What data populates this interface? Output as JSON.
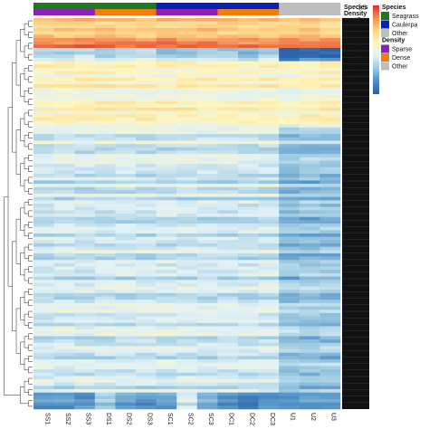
{
  "chart_data": {
    "type": "heatmap",
    "columns": [
      "SS1",
      "SS2",
      "SS3",
      "DS1",
      "DS2",
      "DS3",
      "SC1",
      "SC2",
      "SC3",
      "DC1",
      "DC2",
      "DC3",
      "U1",
      "U2",
      "U3"
    ],
    "annotation_rows": [
      "Species",
      "Density"
    ],
    "annotations": {
      "Species": [
        "Seagrass",
        "Seagrass",
        "Seagrass",
        "Seagrass",
        "Seagrass",
        "Seagrass",
        "Caulerpa",
        "Caulerpa",
        "Caulerpa",
        "Caulerpa",
        "Caulerpa",
        "Caulerpa",
        "Other",
        "Other",
        "Other"
      ],
      "Density": [
        "Sparse",
        "Sparse",
        "Sparse",
        "Dense",
        "Dense",
        "Dense",
        "Sparse",
        "Sparse",
        "Sparse",
        "Dense",
        "Dense",
        "Dense",
        "Other",
        "Other",
        "Other"
      ]
    },
    "legends": [
      {
        "title": "Species",
        "items": [
          {
            "label": "Seagrass",
            "color": "#1f7a1f"
          },
          {
            "label": "Caulerpa",
            "color": "#0b1fb4"
          },
          {
            "label": "Other",
            "color": "#bebebe"
          }
        ]
      },
      {
        "title": "Density",
        "items": [
          {
            "label": "Sparse",
            "color": "#8b22b3"
          },
          {
            "label": "Dense",
            "color": "#f07f0a"
          },
          {
            "label": "Other",
            "color": "#bebebe"
          }
        ]
      }
    ],
    "color_scale": {
      "ticks": [
        "3.5",
        "3",
        "2.5",
        "2",
        "1.5",
        "1",
        "0.5",
        "0"
      ],
      "min": 0,
      "max": 3.5,
      "colors": [
        "#2b5fa8",
        "#4e8ec4",
        "#9ac8e0",
        "#e0f1f6",
        "#fdf6bf",
        "#fdd588",
        "#f68f55",
        "#d73027"
      ]
    },
    "row_bands": [
      {
        "rows": 6,
        "base": 2.6,
        "col_effect": [
          0,
          0,
          0,
          0,
          0,
          0,
          0,
          0,
          0,
          0,
          0,
          0,
          0,
          0,
          0
        ]
      },
      {
        "rows": 3,
        "base": 3.1,
        "col_effect": [
          0,
          0,
          0,
          0,
          0,
          0,
          0,
          0,
          0,
          0,
          0,
          0,
          0,
          0,
          0
        ]
      },
      {
        "rows": 4,
        "base": 1.25,
        "col_effect": [
          0.2,
          0.1,
          0.2,
          0,
          0.1,
          0.2,
          -0.1,
          0,
          0.1,
          0,
          -0.2,
          0.1,
          -1.1,
          -0.9,
          -1.0
        ]
      },
      {
        "rows": 20,
        "base": 1.95,
        "col_effect": [
          0,
          0,
          0,
          0,
          0,
          0,
          0,
          0,
          0,
          0,
          0,
          0,
          -0.1,
          0,
          0
        ]
      },
      {
        "rows": 80,
        "base": 1.4,
        "col_effect": [
          0,
          0,
          0,
          0,
          0,
          0,
          0,
          0,
          0,
          0,
          0,
          0,
          -0.4,
          -0.4,
          -0.4
        ]
      },
      {
        "rows": 5,
        "base": 0.55,
        "col_effect": [
          0,
          0,
          0,
          0.6,
          0.1,
          0,
          0.1,
          0.9,
          0.2,
          0,
          -0.2,
          0,
          0,
          0,
          0
        ]
      }
    ]
  }
}
